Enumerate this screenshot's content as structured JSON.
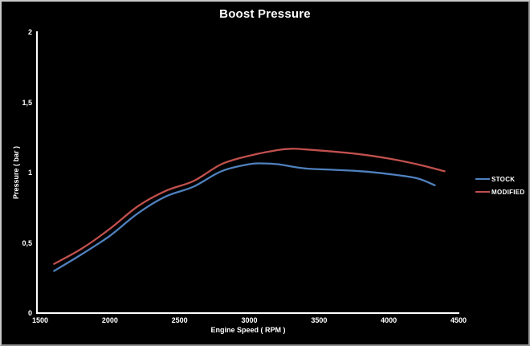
{
  "window": {
    "background": "#000000",
    "border_color": "#c9c9c9",
    "text_color": "#ffffff",
    "axis_color": "#ffffff"
  },
  "chart_data": {
    "type": "line",
    "title": "Boost Pressure",
    "xlabel": "Engine Speed ( RPM )",
    "ylabel": "Pressure ( bar )",
    "xlim": [
      1500,
      4500
    ],
    "ylim": [
      0,
      2
    ],
    "x_ticks": [
      1500,
      2000,
      2500,
      3000,
      3500,
      4000,
      4500
    ],
    "x_tick_labels": [
      "1500",
      "2000",
      "2500",
      "3000",
      "3500",
      "4000",
      "4500"
    ],
    "y_ticks": [
      0,
      0.5,
      1,
      1.5,
      2
    ],
    "y_tick_labels": [
      "0",
      "0,5",
      "1",
      "1,5",
      "2"
    ],
    "grid": false,
    "legend_position": "right",
    "series": [
      {
        "name": "STOCK",
        "color": "#4f81bd",
        "points": [
          [
            1600,
            0.3
          ],
          [
            1800,
            0.42
          ],
          [
            2000,
            0.55
          ],
          [
            2200,
            0.71
          ],
          [
            2400,
            0.83
          ],
          [
            2600,
            0.9
          ],
          [
            2800,
            1.01
          ],
          [
            3000,
            1.06
          ],
          [
            3100,
            1.065
          ],
          [
            3200,
            1.06
          ],
          [
            3400,
            1.03
          ],
          [
            3600,
            1.02
          ],
          [
            3800,
            1.01
          ],
          [
            4000,
            0.99
          ],
          [
            4200,
            0.96
          ],
          [
            4330,
            0.91
          ]
        ]
      },
      {
        "name": "MODIFIED",
        "color": "#c0504d",
        "points": [
          [
            1600,
            0.35
          ],
          [
            1800,
            0.46
          ],
          [
            2000,
            0.6
          ],
          [
            2200,
            0.76
          ],
          [
            2400,
            0.87
          ],
          [
            2600,
            0.94
          ],
          [
            2800,
            1.06
          ],
          [
            3000,
            1.12
          ],
          [
            3200,
            1.16
          ],
          [
            3300,
            1.17
          ],
          [
            3400,
            1.165
          ],
          [
            3600,
            1.15
          ],
          [
            3800,
            1.13
          ],
          [
            4000,
            1.1
          ],
          [
            4200,
            1.06
          ],
          [
            4400,
            1.01
          ]
        ]
      }
    ]
  }
}
